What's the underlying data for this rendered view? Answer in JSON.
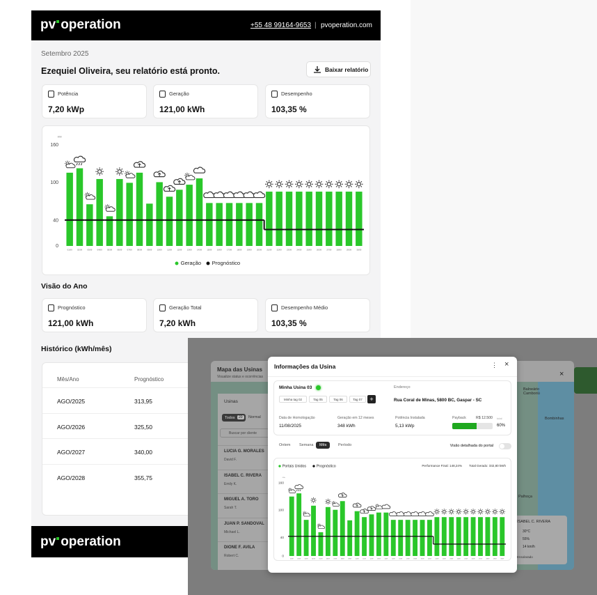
{
  "header": {
    "logo_prefix": "pv",
    "logo_name": "operation",
    "phone": "+55 48 99164-9653",
    "separator": "|",
    "website": "pvoperation.com"
  },
  "report": {
    "period": "Setembro 2025",
    "greeting": "Ezequiel Oliveira, seu relatório está pronto.",
    "download_button": "Baixar relatório"
  },
  "summary_cards": [
    {
      "label": "Potência",
      "value": "7,20 kWp"
    },
    {
      "label": "Geração",
      "value": "121,00 kWh"
    },
    {
      "label": "Desempenho",
      "value": "103,35 %"
    }
  ],
  "chart_data": [
    {
      "type": "bar",
      "ylabel": "kWh",
      "categories": [
        "01/09",
        "02/09",
        "03/09",
        "04/09",
        "05/09",
        "06/09",
        "07/09",
        "08/09",
        "09/09",
        "10/09",
        "11/09",
        "12/09",
        "13/09",
        "14/09",
        "15/09",
        "16/09",
        "17/09",
        "18/09",
        "19/09",
        "20/09",
        "21/09",
        "22/09",
        "23/09",
        "24/09",
        "25/09",
        "26/09",
        "27/09",
        "28/09",
        "29/09",
        "30/09"
      ],
      "series": [
        {
          "name": "Geração",
          "type": "bar",
          "color": "#2ac72a",
          "values": [
            116,
            123,
            66,
            106,
            47,
            106,
            100,
            116,
            67,
            101,
            78,
            89,
            97,
            107,
            68,
            68,
            68,
            68,
            68,
            68,
            86,
            86,
            86,
            86,
            86,
            86,
            86,
            86,
            86,
            86
          ]
        },
        {
          "name": "Prognóstico",
          "type": "line",
          "color": "#111111",
          "values": [
            41,
            41,
            41,
            41,
            41,
            41,
            41,
            41,
            41,
            41,
            41,
            41,
            41,
            41,
            41,
            41,
            41,
            41,
            41,
            41,
            26,
            26,
            26,
            26,
            26,
            26,
            26,
            26,
            26,
            26
          ]
        }
      ],
      "ylim": [
        0,
        160
      ],
      "yticks": [
        0,
        40,
        100,
        160
      ],
      "grid": false
    },
    {
      "type": "bar",
      "ylabel": "kWh",
      "categories": [
        "01/09",
        "02/09",
        "03/09",
        "04/09",
        "05/09",
        "06/09",
        "07/09",
        "08/09",
        "09/09",
        "10/09",
        "11/09",
        "12/09",
        "13/09",
        "14/09",
        "15/09",
        "16/09",
        "17/09",
        "18/09",
        "19/09",
        "20/09",
        "21/09",
        "22/09",
        "23/09",
        "24/09",
        "25/09",
        "26/09",
        "27/09",
        "28/09",
        "29/09",
        "30/09"
      ],
      "series": [
        {
          "name": "Portais Unidos",
          "type": "bar",
          "color": "#2ac72a",
          "values": [
            130,
            137,
            79,
            110,
            52,
            107,
            101,
            120,
            78,
            98,
            85,
            91,
            95,
            95,
            79,
            79,
            79,
            79,
            79,
            79,
            85,
            85,
            85,
            85,
            85,
            85,
            85,
            85,
            85,
            85
          ]
        },
        {
          "name": "Prognóstico",
          "type": "line",
          "color": "#111111",
          "values": [
            43,
            43,
            43,
            43,
            43,
            43,
            43,
            43,
            43,
            43,
            43,
            43,
            43,
            43,
            43,
            43,
            43,
            43,
            43,
            43,
            26,
            26,
            26,
            26,
            26,
            26,
            26,
            26,
            26,
            26
          ]
        }
      ],
      "ylim": [
        0,
        160
      ],
      "yticks": [
        0,
        40,
        100,
        160
      ],
      "grid": false,
      "annotations": [
        "Performance Final: 148,24%",
        "Total Gerado: 332,80 kWh"
      ]
    }
  ],
  "year_view": {
    "title": "Visão do Ano",
    "cards": [
      {
        "label": "Prognóstico",
        "value": "121,00 kWh"
      },
      {
        "label": "Geração Total",
        "value": "7,20 kWh"
      },
      {
        "label": "Desempenho Médio",
        "value": "103,35 %"
      }
    ]
  },
  "history": {
    "title": "Histórico (kWh/mês)",
    "columns": [
      "Mês/Ano",
      "Prognóstico"
    ],
    "rows": [
      [
        "AGO/2025",
        "313,95"
      ],
      [
        "AGO/2026",
        "325,50"
      ],
      [
        "AGO/2027",
        "340,00"
      ],
      [
        "AGO/2028",
        "355,75"
      ]
    ]
  },
  "footer": {
    "logo_prefix": "pv",
    "logo_name": "operation"
  },
  "overlay": {
    "panel": {
      "title": "Mapa das Usinas",
      "subtitle": "Visualize status e ocorrências",
      "section": "Usinas",
      "filter_all": "Todos",
      "filter_count": "20",
      "filter_normal": "Normal",
      "search_placeholder": "Buscar por cliente",
      "plants": [
        {
          "name": "LUCIA G. MORALES",
          "owner": "David F."
        },
        {
          "name": "ISABEL C. RIVERA",
          "owner": "Emily K."
        },
        {
          "name": "MIGUEL A. TORO",
          "owner": "Sarah T."
        },
        {
          "name": "JUAN P. SANDOVAL",
          "owner": "Michael L."
        },
        {
          "name": "DIONE F. AVILA",
          "owner": "Robert C."
        }
      ]
    },
    "map": {
      "places": [
        "Balneário Camboriú",
        "Bombinhas",
        "Palhoça"
      ],
      "weather_card": {
        "name": "ISABEL C. RIVERA",
        "temperature": "30°C",
        "humidity": "55%",
        "wind": "14 km/h",
        "condition": "Ensolarado"
      }
    },
    "modal": {
      "title": "Informações da Usina",
      "plant": "Minha Usina 03",
      "tags": [
        "Minha tag 02",
        "Tag 05",
        "Tag 06",
        "Tag 07"
      ],
      "add_tag": "+",
      "address_label": "Endereço",
      "address": "Rua Coral de Minas, 5800 BC, Gaspar - SC",
      "facts": [
        {
          "label": "Data de Homologação",
          "value": "11/08/2025"
        },
        {
          "label": "Geração em 12 meses",
          "value": "348 kWh"
        },
        {
          "label": "Potência Instalada",
          "value": "5,13 kWp"
        }
      ],
      "payback": {
        "label": "Payback",
        "amount": "R$ 12.500",
        "note": "total",
        "percent": 60,
        "percent_label": "60%"
      },
      "tabs": [
        "Ontem",
        "Semana",
        "Mês",
        "Período"
      ],
      "active_tab": 2,
      "toggle_label": "Visão detalhada do portal"
    }
  }
}
